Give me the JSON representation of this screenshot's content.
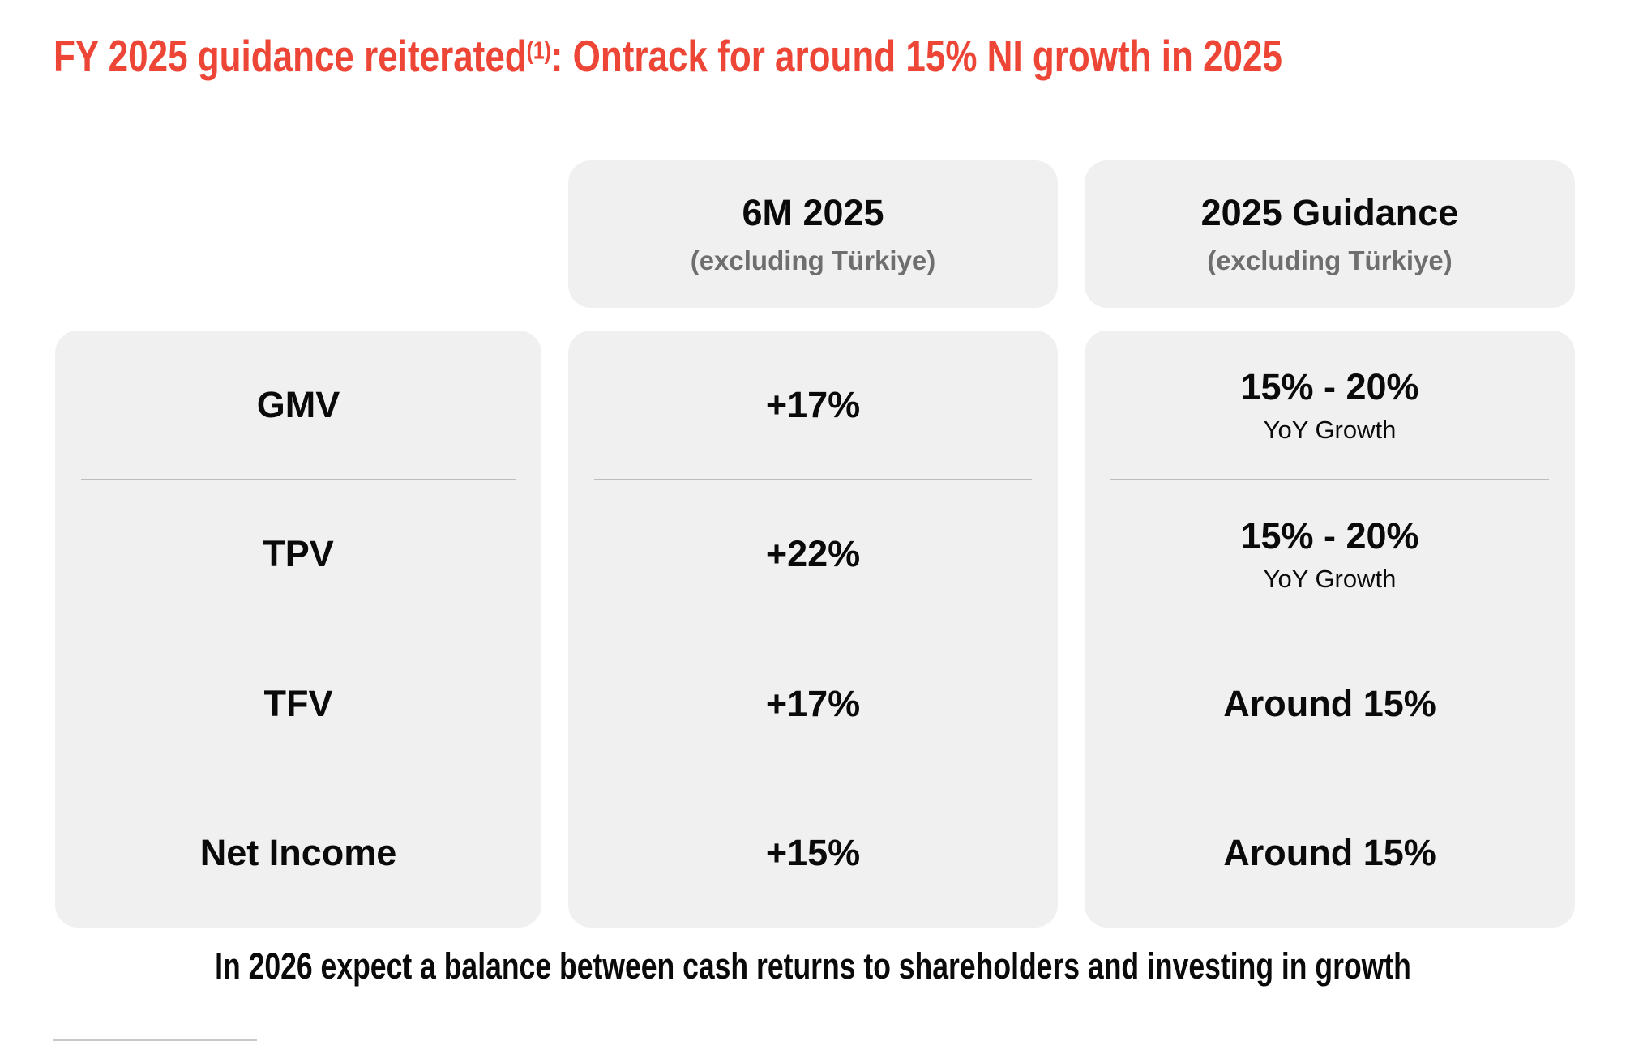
{
  "slide": {
    "title": {
      "text_before_footnote": "FY 2025 guidance reiterated",
      "footnote_marker": "(1)",
      "text_after_footnote": ": Ontrack for around 15% NI growth in 2025"
    },
    "footer_message": "In 2026 expect a balance between cash returns to shareholders and investing in growth"
  },
  "table": {
    "column_headers": [
      {
        "title": "6M 2025",
        "subtitle": "(excluding Türkiye)"
      },
      {
        "title": "2025 Guidance",
        "subtitle": "(excluding Türkiye)"
      }
    ],
    "rows": [
      {
        "metric": "GMV",
        "six_m_2025": "+17%",
        "guidance_2025": "15% - 20%",
        "guidance_2025_sub": "YoY Growth"
      },
      {
        "metric": "TPV",
        "six_m_2025": "+22%",
        "guidance_2025": "15% - 20%",
        "guidance_2025_sub": "YoY Growth"
      },
      {
        "metric": "TFV",
        "six_m_2025": "+17%",
        "guidance_2025": "Around 15%",
        "guidance_2025_sub": ""
      },
      {
        "metric": "Net Income",
        "six_m_2025": "+15%",
        "guidance_2025": "Around 15%",
        "guidance_2025_sub": ""
      }
    ]
  },
  "colors": {
    "title_red": "#ED4637",
    "panel_gray": "#F0F0F0",
    "subtitle_gray": "#6E6E6E",
    "separator_gray": "#BDBDBD",
    "footnote_rule_gray": "#C8C8C8",
    "text_black": "#111111"
  }
}
